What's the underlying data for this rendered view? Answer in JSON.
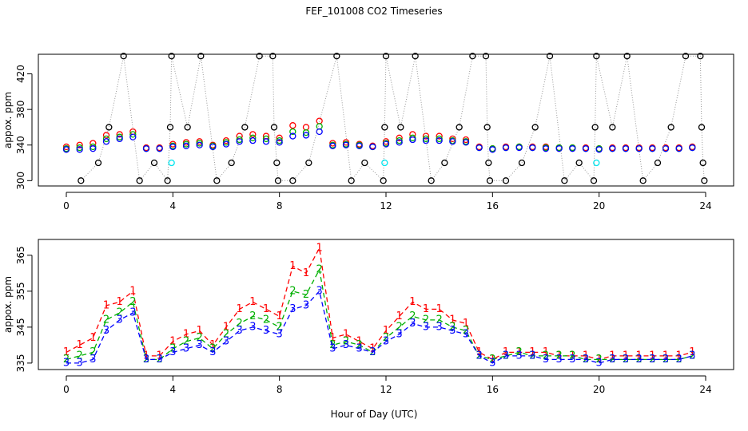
{
  "chart_data": [
    {
      "type": "scatter",
      "title": "FEF_101008  CO2 Timeseries",
      "y_label": "appox. ppm",
      "xlim": [
        -1.05,
        25.05
      ],
      "ylim": [
        294,
        442
      ],
      "xticks": [
        0,
        4,
        8,
        12,
        16,
        20,
        24
      ],
      "yticks": [
        300,
        340,
        380,
        420
      ],
      "grid": false,
      "x": [
        0,
        0.5,
        1,
        1.5,
        2,
        2.5,
        3,
        3.5,
        4,
        4.5,
        5,
        5.5,
        6,
        6.5,
        7,
        7.5,
        8,
        8.5,
        9,
        9.5,
        10,
        10.5,
        11,
        11.5,
        12,
        12.5,
        13,
        13.5,
        14,
        14.5,
        15,
        15.5,
        16,
        16.5,
        17,
        17.5,
        18,
        18.5,
        19,
        19.5,
        20,
        20.5,
        21,
        21.5,
        22,
        22.5,
        23,
        23.5
      ],
      "series": [
        {
          "color": "#ff0000",
          "values": [
            338,
            340,
            342,
            351,
            352,
            355,
            337,
            337,
            341,
            343,
            344,
            340,
            345,
            350,
            352,
            350,
            348,
            362,
            360,
            367,
            342,
            343,
            341,
            339,
            344,
            348,
            352,
            350,
            350,
            347,
            346,
            338,
            336,
            338,
            338,
            338,
            338,
            337,
            337,
            337,
            336,
            337,
            337,
            337,
            337,
            337,
            337,
            338
          ]
        },
        {
          "color": "#00b000",
          "values": [
            336,
            337,
            338,
            347,
            349,
            352,
            336,
            336,
            339,
            341,
            342,
            339,
            343,
            346,
            348,
            347,
            345,
            355,
            354,
            361,
            340,
            341,
            340,
            338,
            342,
            345,
            348,
            347,
            347,
            345,
            344,
            337,
            336,
            337,
            338,
            337,
            337,
            337,
            337,
            336,
            336,
            336,
            336,
            336,
            336,
            336,
            336,
            337
          ]
        },
        {
          "color": "#0000ff",
          "values": [
            335,
            335,
            336,
            344,
            347,
            349,
            336,
            336,
            338,
            339,
            340,
            338,
            341,
            344,
            345,
            344,
            343,
            350,
            351,
            355,
            339,
            340,
            339,
            338,
            341,
            343,
            346,
            345,
            345,
            344,
            343,
            337,
            335,
            337,
            337,
            337,
            336,
            336,
            336,
            336,
            335,
            336,
            336,
            336,
            336,
            336,
            336,
            337
          ]
        },
        {
          "color": "#000000",
          "line": "dotted",
          "x": [
            0.55,
            1.2,
            1.6,
            2.15,
            2.75,
            3.3,
            3.8,
            3.9,
            3.95,
            4.55,
            5.05,
            5.65,
            6.2,
            6.7,
            7.25,
            7.75,
            7.8,
            7.9,
            7.95,
            8.5,
            9.1,
            10.15,
            10.7,
            11.2,
            11.9,
            11.95,
            12,
            12.55,
            13.1,
            13.7,
            14.2,
            14.75,
            15.25,
            15.75,
            15.8,
            15.85,
            15.9,
            16.5,
            17.1,
            17.6,
            18.15,
            18.7,
            19.25,
            19.8,
            19.85,
            19.9,
            20.5,
            21.05,
            21.65,
            22.2,
            22.7,
            23.25,
            23.8,
            23.85,
            23.9,
            23.95
          ],
          "values": [
            300,
            320,
            360,
            440,
            300,
            320,
            300,
            360,
            440,
            360,
            440,
            300,
            320,
            360,
            440,
            440,
            360,
            320,
            300,
            300,
            320,
            440,
            300,
            320,
            300,
            360,
            440,
            360,
            440,
            300,
            320,
            360,
            440,
            440,
            360,
            320,
            300,
            300,
            320,
            360,
            440,
            300,
            320,
            300,
            360,
            440,
            360,
            440,
            300,
            320,
            360,
            440,
            440,
            360,
            320,
            300
          ]
        },
        {
          "color": "#00e5ee",
          "x": [
            3.95,
            11.95,
            19.9
          ],
          "values": [
            320,
            320,
            320
          ]
        }
      ]
    },
    {
      "type": "line",
      "y_label": "appox. ppm",
      "x_label": "Hour of Day (UTC)",
      "xlim": [
        -1.05,
        25.05
      ],
      "ylim": [
        333.2,
        369.4
      ],
      "xticks": [
        0,
        4,
        8,
        12,
        16,
        20,
        24
      ],
      "yticks": [
        335,
        345,
        355,
        365
      ],
      "grid": false,
      "x": [
        0,
        0.5,
        1,
        1.5,
        2,
        2.5,
        3,
        3.5,
        4,
        4.5,
        5,
        5.5,
        6,
        6.5,
        7,
        7.5,
        8,
        8.5,
        9,
        9.5,
        10,
        10.5,
        11,
        11.5,
        12,
        12.5,
        13,
        13.5,
        14,
        14.5,
        15,
        15.5,
        16,
        16.5,
        17,
        17.5,
        18,
        18.5,
        19,
        19.5,
        20,
        20.5,
        21,
        21.5,
        22,
        22.5,
        23,
        23.5
      ],
      "series": [
        {
          "color": "#ff0000",
          "marker": "1",
          "values": [
            338,
            340,
            342,
            351,
            352,
            355,
            337,
            337,
            341,
            343,
            344,
            340,
            345,
            350,
            352,
            350,
            348,
            362,
            360,
            367,
            342,
            343,
            341,
            339,
            344,
            348,
            352,
            350,
            350,
            347,
            346,
            338,
            336,
            338,
            338,
            338,
            338,
            337,
            337,
            337,
            336,
            337,
            337,
            337,
            337,
            337,
            337,
            338
          ]
        },
        {
          "color": "#00b000",
          "marker": "2",
          "values": [
            336,
            337,
            338,
            347,
            349,
            352,
            336,
            336,
            339,
            341,
            342,
            339,
            343,
            346,
            348,
            347,
            345,
            355,
            354,
            361,
            340,
            341,
            340,
            338,
            342,
            345,
            348,
            347,
            347,
            345,
            344,
            337,
            336,
            337,
            338,
            337,
            337,
            337,
            337,
            336,
            336,
            336,
            336,
            336,
            336,
            336,
            336,
            337
          ]
        },
        {
          "color": "#0000ff",
          "marker": "3",
          "values": [
            335,
            335,
            336,
            344,
            347,
            349,
            336,
            336,
            338,
            339,
            340,
            338,
            341,
            344,
            345,
            344,
            343,
            350,
            351,
            355,
            339,
            340,
            339,
            338,
            341,
            343,
            346,
            345,
            345,
            344,
            343,
            337,
            335,
            337,
            337,
            337,
            336,
            336,
            336,
            336,
            335,
            336,
            336,
            336,
            336,
            336,
            336,
            337
          ]
        }
      ]
    }
  ]
}
